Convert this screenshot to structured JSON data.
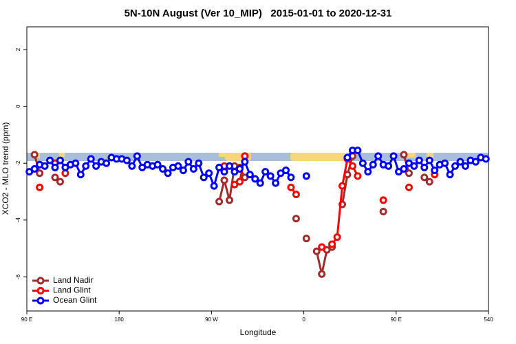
{
  "chart_data": {
    "type": "line",
    "title": "5N-10N August (Ver 10_MIP)   2015-01-01 to 2020-12-31",
    "xlabel": "Longitude",
    "ylabel": "XCO2 - MLO trend (ppm)",
    "xlim": [
      90,
      540
    ],
    "ylim": [
      -7.2,
      2.8
    ],
    "xticks": [
      {
        "value": 90,
        "label": "90 E"
      },
      180,
      {
        "value": 270,
        "label": "90 W"
      },
      {
        "value": 360,
        "label": "0"
      },
      {
        "value": 450,
        "label": "90 E"
      },
      540
    ],
    "yticks": [
      -6,
      -4,
      -2,
      0,
      2
    ],
    "grid": false,
    "legend": "bottomleft",
    "x": [
      92.5,
      97.5,
      102.5,
      107.5,
      112.5,
      117.5,
      122.5,
      127.5,
      132.5,
      137.5,
      142.5,
      147.5,
      152.5,
      157.5,
      162.5,
      167.5,
      172.5,
      177.5,
      182.5,
      187.5,
      192.5,
      197.5,
      202.5,
      207.5,
      212.5,
      217.5,
      222.5,
      227.5,
      232.5,
      237.5,
      242.5,
      247.5,
      252.5,
      257.5,
      262.5,
      267.5,
      272.5,
      277.5,
      282.5,
      287.5,
      292.5,
      297.5,
      302.5,
      307.5,
      312.5,
      317.5,
      322.5,
      327.5,
      332.5,
      337.5,
      342.5,
      347.5,
      352.5,
      357.5,
      362.5,
      367.5,
      372.5,
      377.5,
      382.5,
      387.5,
      392.5,
      397.5,
      402.5,
      407.5,
      412.5,
      417.5,
      422.5,
      427.5,
      432.5,
      437.5,
      442.5,
      447.5,
      452.5,
      457.5,
      462.5,
      467.5,
      472.5,
      477.5,
      482.5,
      487.5,
      492.5,
      497.5,
      502.5,
      507.5,
      512.5,
      517.5,
      522.5,
      527.5,
      532.5,
      537.5
    ],
    "series": [
      {
        "name": "Land Nadir",
        "color": "#a52a2a",
        "values": [
          null,
          -1.7,
          -2.35,
          null,
          null,
          -2.5,
          -2.65,
          null,
          null,
          null,
          null,
          null,
          null,
          null,
          null,
          null,
          null,
          null,
          null,
          null,
          null,
          null,
          null,
          null,
          null,
          null,
          null,
          null,
          null,
          null,
          null,
          null,
          null,
          null,
          null,
          null,
          null,
          -3.35,
          -2.6,
          -3.3,
          -2.1,
          -2.15,
          -2.5,
          null,
          null,
          null,
          null,
          null,
          null,
          null,
          null,
          null,
          -3.95,
          null,
          -4.65,
          null,
          -5.1,
          -5.9,
          -5.05,
          -4.95,
          null,
          -3.45,
          -2.4,
          -1.75,
          null,
          null,
          null,
          null,
          null,
          -3.7,
          null,
          null,
          null,
          -1.7,
          -2.35,
          null,
          null,
          -2.5,
          -2.65,
          null,
          null,
          null,
          null,
          null,
          null,
          null,
          null,
          null,
          null,
          null
        ]
      },
      {
        "name": "Land Glint",
        "color": "#ff0000",
        "values": [
          null,
          null,
          -2.85,
          null,
          null,
          -2.0,
          null,
          -2.35,
          null,
          null,
          null,
          null,
          null,
          null,
          null,
          null,
          null,
          null,
          null,
          null,
          null,
          null,
          null,
          null,
          null,
          null,
          null,
          null,
          null,
          null,
          null,
          null,
          null,
          null,
          null,
          null,
          null,
          null,
          -2.1,
          null,
          -2.75,
          -2.65,
          -1.75,
          null,
          null,
          null,
          null,
          null,
          null,
          null,
          null,
          -2.85,
          -3.1,
          null,
          null,
          null,
          null,
          -4.95,
          null,
          -4.85,
          -4.6,
          -2.8,
          -1.85,
          -2.1,
          -2.45,
          null,
          null,
          null,
          null,
          -3.3,
          null,
          null,
          null,
          null,
          -2.85,
          null,
          null,
          null,
          null,
          -2.4,
          null,
          null,
          null,
          null,
          null,
          null,
          null,
          null,
          null,
          null
        ]
      },
      {
        "name": "Ocean Glint",
        "color": "#0000ff",
        "values": [
          -2.3,
          -2.2,
          -2.05,
          -2.1,
          -1.9,
          -2.15,
          -1.9,
          -2.15,
          -2.05,
          -2.0,
          -2.4,
          -2.1,
          -1.85,
          -2.1,
          -1.95,
          -2.0,
          -1.8,
          -1.85,
          -1.85,
          -1.9,
          -2.1,
          -1.75,
          -2.15,
          -2.05,
          -2.1,
          -2.05,
          -2.2,
          -2.35,
          -2.15,
          -2.1,
          -2.25,
          -1.95,
          -2.2,
          -2.0,
          -2.5,
          -2.35,
          -2.8,
          -2.15,
          -2.3,
          -2.1,
          -2.3,
          -2.2,
          -1.95,
          -2.4,
          -2.55,
          -2.7,
          -2.3,
          -2.45,
          -2.7,
          -2.35,
          -2.25,
          -2.5,
          null,
          null,
          -2.45,
          null,
          null,
          null,
          null,
          null,
          null,
          null,
          -1.8,
          -1.55,
          -1.55,
          -2.0,
          -2.3,
          -2.05,
          -1.75,
          -2.05,
          -2.1,
          -1.75,
          -2.3,
          -2.2,
          -2.0,
          -2.1,
          -1.9,
          -2.15,
          -1.9,
          -2.25,
          -2.05,
          -2.0,
          -2.4,
          -2.1,
          -1.95,
          -2.1,
          -1.9,
          -1.95,
          -1.8,
          -1.85
        ]
      }
    ]
  }
}
